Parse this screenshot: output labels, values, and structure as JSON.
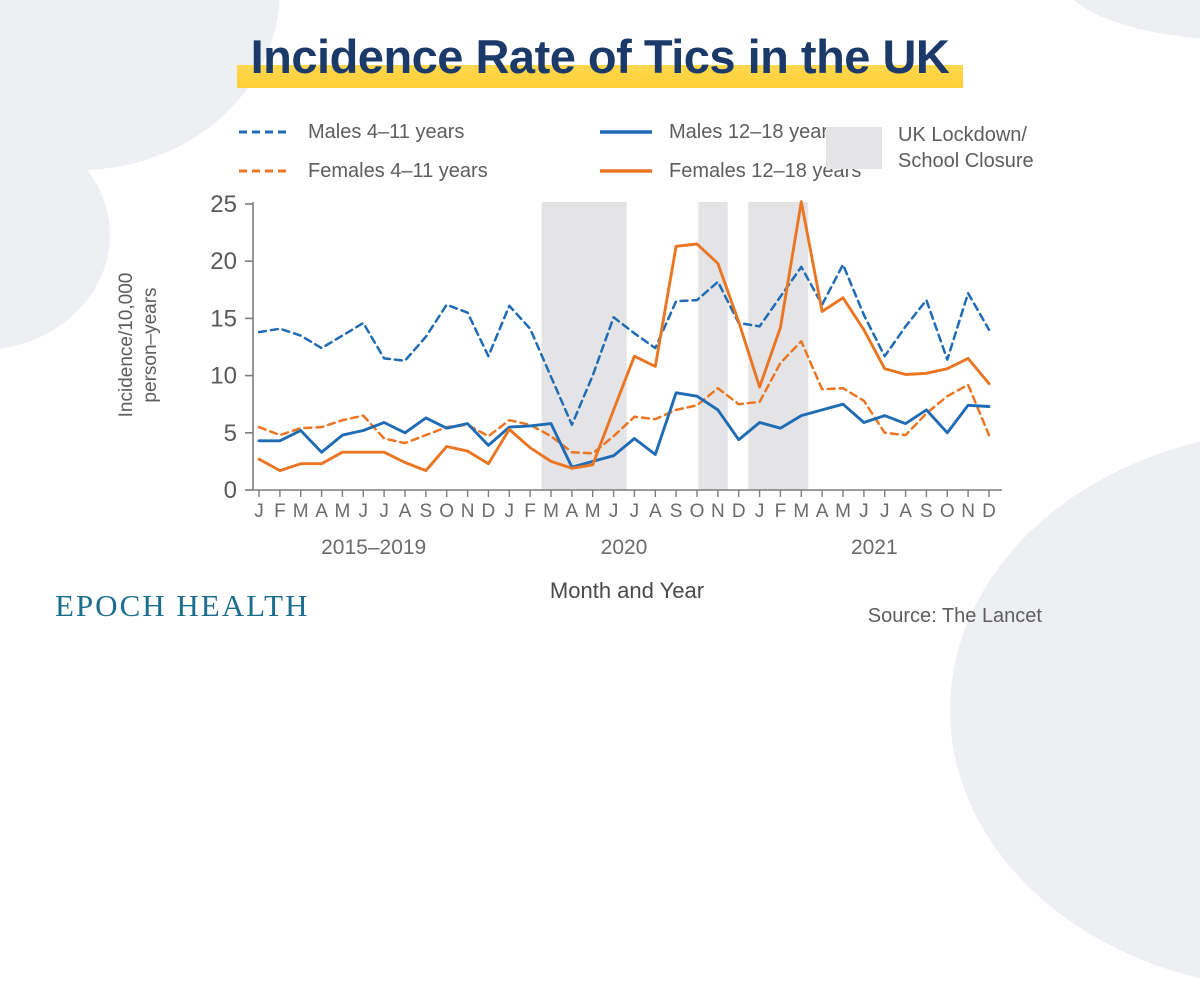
{
  "title": "Incidence Rate of Tics in the UK",
  "brand": "EPOCH HEALTH",
  "source": "Source: The Lancet",
  "legend": {
    "males_4_11": "Males 4–11 years",
    "females_4_11": "Females 4–11 years",
    "males_12_18": "Males 12–18 years",
    "females_12_18": "Females 12–18 years",
    "lockdown_line1": "UK Lockdown/",
    "lockdown_line2": "School Closure"
  },
  "axis_labels": {
    "xlabel": "Month and Year",
    "ylabel_line1": "Incidence/10,000",
    "ylabel_line2": "person–years"
  },
  "colors": {
    "male_blue": "#1f6cb4",
    "female_orange": "#ea7623",
    "lockdown_band": "#e4e4e7",
    "title_navy": "#1b3a69",
    "highlight_yellow": "#ffd84f",
    "brand_teal": "#1b6e8e",
    "axis_gray": "#7d7d7d"
  },
  "chart_data": {
    "type": "line",
    "title": "Incidence Rate of Tics in the UK",
    "xlabel": "Month and Year",
    "ylabel": "Incidence/10,000 person–years",
    "ylim": [
      0,
      25
    ],
    "yticks": [
      0,
      5,
      10,
      15,
      20,
      25
    ],
    "grid": false,
    "legend_position": "top",
    "month_labels": [
      "J",
      "F",
      "M",
      "A",
      "M",
      "J",
      "J",
      "A",
      "S",
      "O",
      "N",
      "D",
      "J",
      "F",
      "M",
      "A",
      "M",
      "J",
      "J",
      "A",
      "S",
      "O",
      "N",
      "D",
      "J",
      "F",
      "M",
      "A",
      "M",
      "J",
      "J",
      "A",
      "S",
      "O",
      "N",
      "D"
    ],
    "year_groups": [
      {
        "label": "2015–2019",
        "center": 5.5
      },
      {
        "label": "2020",
        "center": 17.5
      },
      {
        "label": "2021",
        "center": 29.5
      }
    ],
    "lockdown_bands": [
      {
        "from": 13.55,
        "to": 17.63
      },
      {
        "from": 21.06,
        "to": 22.47
      },
      {
        "from": 23.46,
        "to": 26.33
      }
    ],
    "lockdown_band_meaning": "UK Lockdown/School Closure",
    "series": [
      {
        "name": "Males 4–11 years",
        "line": "dashed",
        "color": "male_blue",
        "values": [
          13.8,
          14.1,
          13.5,
          12.4,
          13.5,
          14.6,
          11.5,
          11.3,
          13.4,
          16.2,
          15.5,
          11.7,
          16.1,
          14.1,
          9.9,
          5.7,
          10.0,
          15.1,
          13.7,
          12.4,
          16.5,
          16.6,
          18.2,
          14.6,
          14.3,
          16.9,
          19.5,
          16.2,
          19.7,
          15.3,
          11.7,
          14.3,
          16.6,
          11.4,
          17.2,
          14.0
        ]
      },
      {
        "name": "Females 4–11 years",
        "line": "dashed",
        "color": "female_orange",
        "values": [
          5.5,
          4.8,
          5.4,
          5.5,
          6.1,
          6.5,
          4.5,
          4.1,
          4.8,
          5.5,
          5.7,
          4.7,
          6.1,
          5.7,
          4.7,
          3.3,
          3.2,
          4.7,
          6.4,
          6.2,
          7.0,
          7.4,
          8.9,
          7.5,
          7.7,
          11.1,
          13.0,
          8.8,
          8.9,
          7.8,
          5.0,
          4.8,
          6.7,
          8.2,
          9.2,
          4.8
        ]
      },
      {
        "name": "Males 12–18 years",
        "line": "solid",
        "color": "male_blue",
        "values": [
          4.3,
          4.3,
          5.2,
          3.3,
          4.8,
          5.2,
          5.9,
          5.0,
          6.3,
          5.4,
          5.8,
          3.9,
          5.5,
          5.6,
          5.8,
          2.0,
          2.5,
          3.0,
          4.5,
          3.1,
          8.5,
          8.2,
          7.0,
          4.4,
          5.9,
          5.4,
          6.5,
          7.0,
          7.5,
          5.9,
          6.5,
          5.8,
          7.0,
          5.0,
          7.4,
          7.3
        ]
      },
      {
        "name": "Females 12–18 years",
        "line": "solid",
        "color": "female_orange",
        "values": [
          2.7,
          1.7,
          2.3,
          2.3,
          3.3,
          3.3,
          3.3,
          2.4,
          1.7,
          3.8,
          3.4,
          2.3,
          5.3,
          3.7,
          2.5,
          1.9,
          2.2,
          7.0,
          11.7,
          10.8,
          21.3,
          21.5,
          19.8,
          14.7,
          9.0,
          14.2,
          25.2,
          15.6,
          16.8,
          14.0,
          10.6,
          10.1,
          10.2,
          10.6,
          11.5,
          9.3
        ]
      }
    ]
  }
}
